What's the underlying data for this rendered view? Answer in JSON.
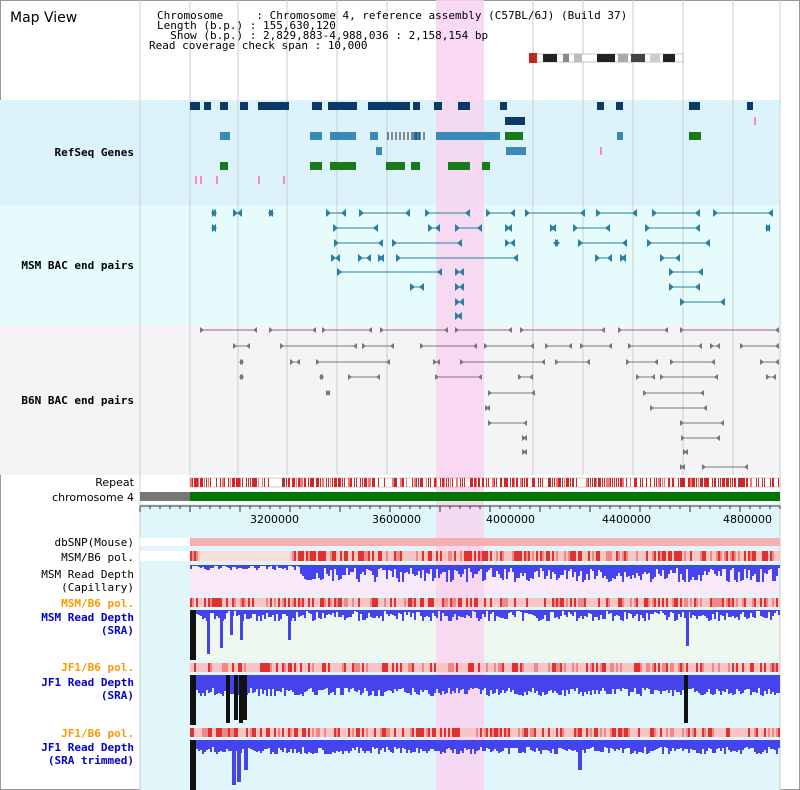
{
  "page_title": "Map View",
  "info": {
    "chromosome_label": "Chromosome     : ",
    "chromosome_value": "Chromosome 4, reference assembly (C57BL/6J) (Build 37)",
    "length_label": "Length (b.p.) : ",
    "length_value": "155,630,120",
    "show_label": "  Show (b.p.) : ",
    "show_value": "2,829,883-4,988,036 : 2,158,154 bp",
    "read_cov_label": "Read coverage check span : ",
    "read_cov_value": "10,000"
  },
  "tracks": {
    "refseq": {
      "label": "RefSeq Genes",
      "color": "#000099",
      "bg": "#ddf3fb"
    },
    "msm_bac": {
      "label": "MSM BAC end pairs",
      "color": "#006699",
      "bg": "#e6fbfb"
    },
    "b6n_bac": {
      "label": "B6N BAC end pairs",
      "color": "#666666",
      "bg": "#f4f4f7"
    },
    "repeat": {
      "label": "Repeat"
    },
    "chromosome": {
      "label": "chromosome 4"
    },
    "dbsnp": {
      "label": "dbSNP(Mouse)",
      "color": "#555555"
    },
    "msm_b6_pol_1": {
      "label": "MSM/B6 pol.",
      "color": "#555555"
    },
    "msm_depth_cap": {
      "label_line1": "MSM Read Depth",
      "label_line2": "(Capillary)",
      "color": "#555555"
    },
    "msm_b6_pol_2": {
      "label": "MSM/B6 pol.",
      "color": "#ff9900"
    },
    "msm_depth_sra": {
      "label_line1": "MSM Read Depth",
      "label_line2": "(SRA)",
      "color": "#0000cc"
    },
    "jf1_b6_pol_1": {
      "label": "JF1/B6 pol.",
      "color": "#ff9900"
    },
    "jf1_depth_sra": {
      "label_line1": "JF1 Read Depth",
      "label_line2": "(SRA)",
      "color": "#0000cc"
    },
    "jf1_b6_pol_2": {
      "label": "JF1/B6 pol.",
      "color": "#ff9900"
    },
    "jf1_depth_trim": {
      "label_line1": "JF1 Read Depth",
      "label_line2": "(SRA trimmed)",
      "color": "#0000cc"
    }
  },
  "ruler": {
    "ticks": [
      "3200000",
      "3600000",
      "4000000",
      "4400000",
      "4800000"
    ]
  },
  "colors": {
    "highlight": "#f8d4f0",
    "refseq_dark": "#0b3a66",
    "refseq_mid": "#3a8ab8",
    "refseq_green": "#1a7a1a",
    "msm_line": "#2a7fa0",
    "b6n_line": "#777777",
    "chromosome_green": "#007700",
    "chromosome_gray": "#777777",
    "repeat_red": "#dd2222",
    "depth_blue": "#4444ee",
    "depth_black": "#111111"
  }
}
